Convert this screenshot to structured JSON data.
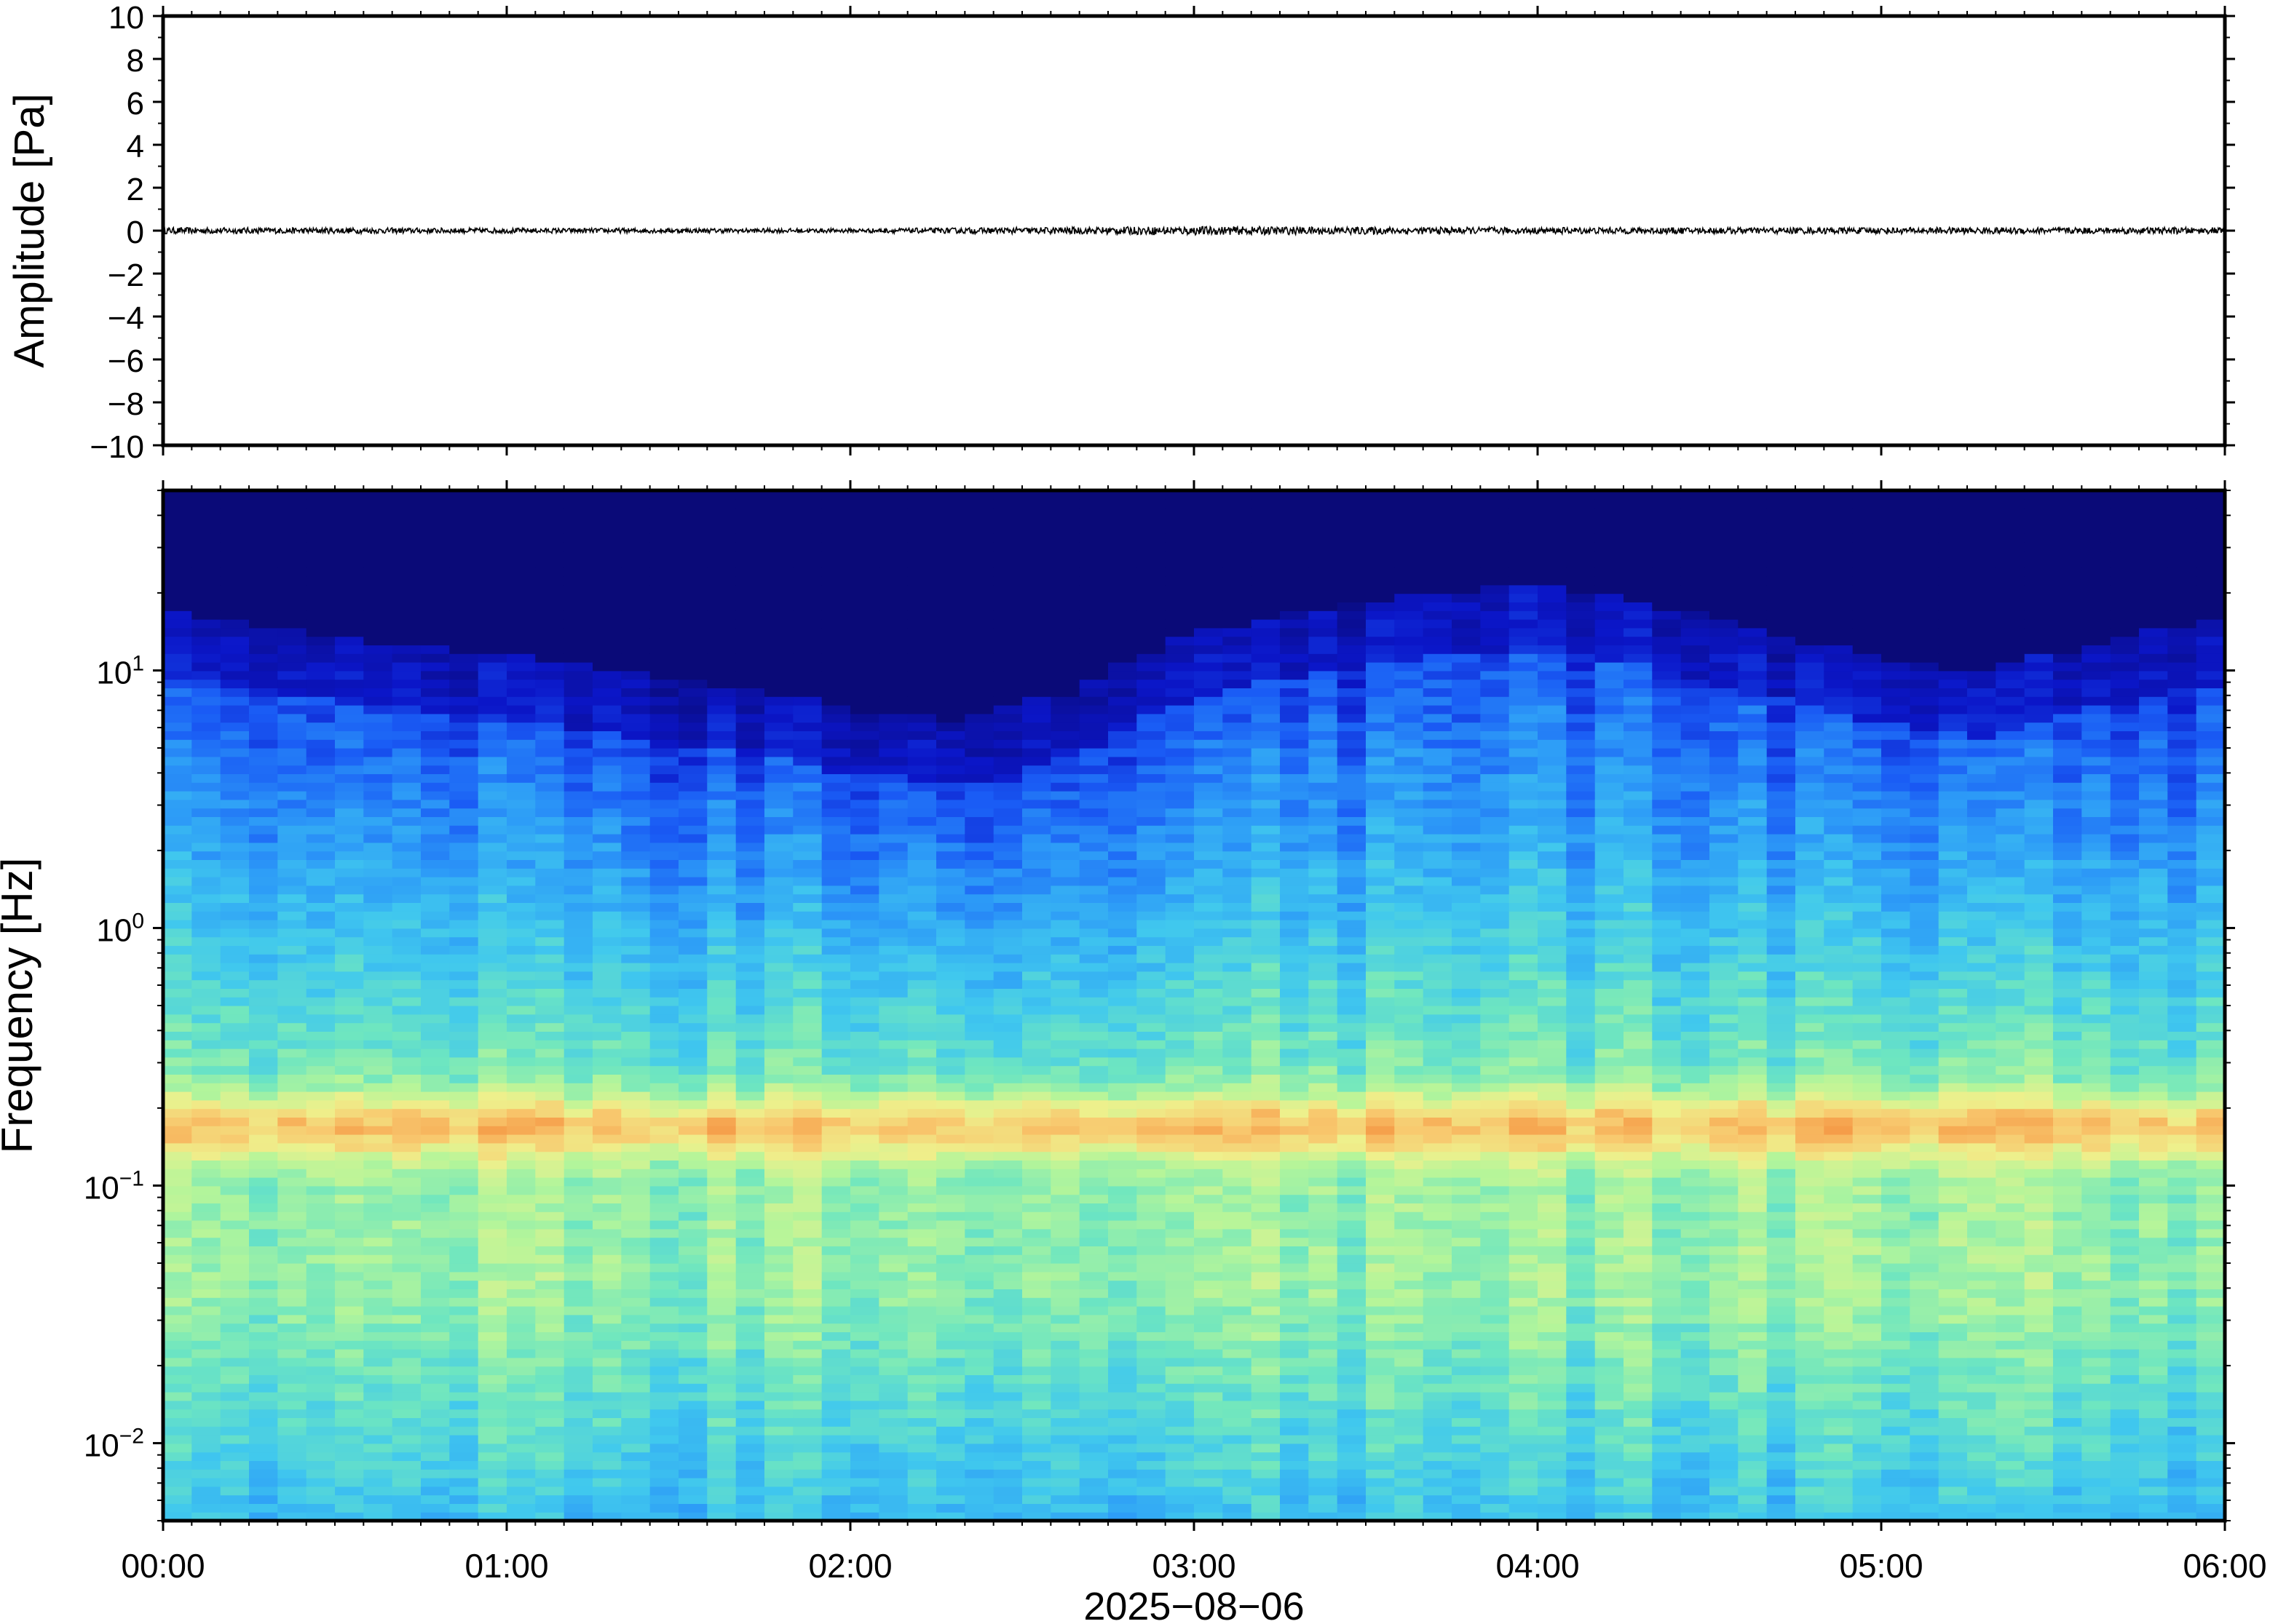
{
  "chart_data": [
    {
      "type": "line",
      "panel": "waveform",
      "title": "",
      "ylabel": "Amplitude [Pa]",
      "ylim": [
        -10,
        10
      ],
      "yticks": [
        10,
        8,
        6,
        4,
        2,
        0,
        -2,
        -4,
        -6,
        -8,
        -10
      ],
      "ytick_labels": [
        "10",
        "8",
        "6",
        "4",
        "2",
        "0",
        "−2",
        "−4",
        "−6",
        "−8",
        "−10"
      ],
      "xlim": [
        "2025-08-06 00:00",
        "2025-08-06 06:00"
      ],
      "line_color": "#000000",
      "grid": false,
      "series": [
        {
          "values_note_visible": "",
          "x": [
            "00:00",
            "01:00",
            "02:00",
            "03:00",
            "04:00",
            "05:00",
            "06:00"
          ],
          "y": [
            0,
            0,
            0,
            0,
            0,
            0,
            0
          ],
          "noise_amplitude": [
            0.15,
            0.12,
            0.1,
            0.2,
            0.15,
            0.15,
            0.15
          ]
        }
      ]
    },
    {
      "type": "heatmap",
      "panel": "spectrogram",
      "title": "",
      "ylabel": "Frequency [Hz]",
      "yscale": "log",
      "ylim": [
        0.005,
        50
      ],
      "yticks": [
        0.01,
        0.1,
        1,
        10
      ],
      "ytick_labels": [
        {
          "base": "10",
          "exp": "−2"
        },
        {
          "base": "10",
          "exp": "−1"
        },
        {
          "base": "10",
          "exp": "0"
        },
        {
          "base": "10",
          "exp": "1"
        }
      ],
      "xlabel": "2025−08−06",
      "xlim": [
        "00:00",
        "06:00"
      ],
      "xticks": [
        "00:00",
        "01:00",
        "02:00",
        "03:00",
        "04:00",
        "05:00",
        "06:00"
      ],
      "colormap": [
        "#0a0a78",
        "#0b16c8",
        "#1a5cf5",
        "#2d9cf7",
        "#40c8ee",
        "#6ee6c0",
        "#b4f59a",
        "#eef08c",
        "#f8c86e",
        "#f59a46"
      ],
      "noise_floor_top_hz": [
        12,
        10,
        9,
        8,
        7,
        6,
        5,
        4.5,
        6,
        10,
        12,
        14,
        15,
        13,
        10,
        8,
        7,
        9,
        11
      ],
      "microseism_peak_hz": 0.17,
      "grid": false
    }
  ]
}
